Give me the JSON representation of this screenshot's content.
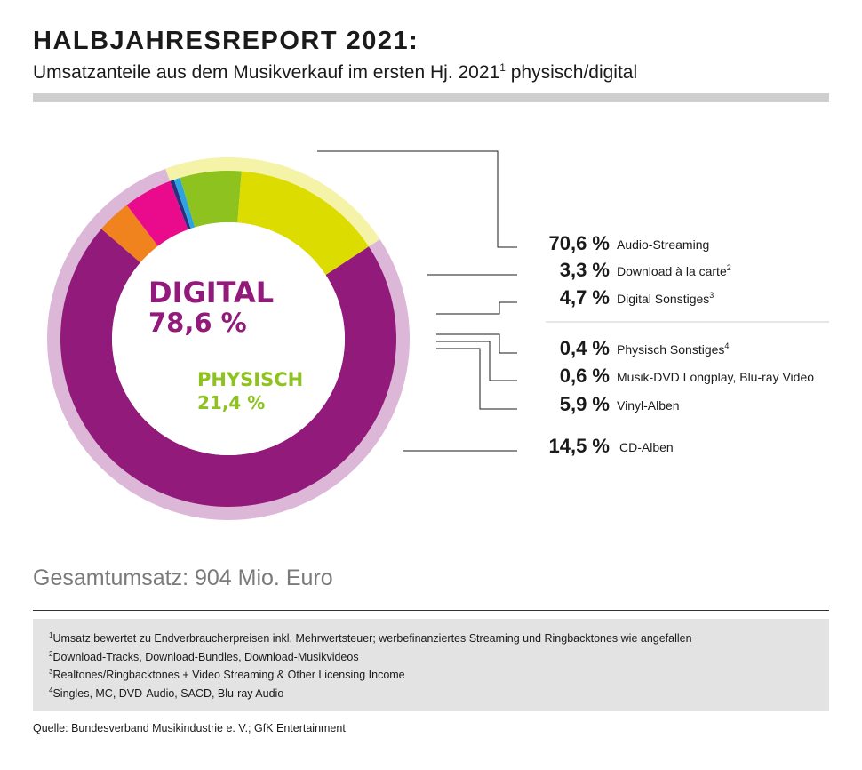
{
  "header": {
    "title": "HALBJAHRESREPORT 2021:",
    "subtitle": "Umsatzanteile aus dem Musikverkauf im ersten Hj. 2021",
    "subtitle_sup": "1",
    "subtitle_tail": " physisch/digital"
  },
  "center": {
    "digital_label": "DIGITAL",
    "digital_value": "78,6 %",
    "physical_label": "PHYSISCH",
    "physical_value": "21,4 %"
  },
  "chart_data": {
    "type": "pie",
    "title": "Umsatzanteile aus dem Musikverkauf im ersten Hj. 2021 physisch/digital",
    "unit": "%",
    "groups": [
      {
        "name": "DIGITAL",
        "value": 78.6,
        "color": "#dcb7d8"
      },
      {
        "name": "PHYSISCH",
        "value": 21.4,
        "color": "#f4f3a8"
      }
    ],
    "slices": [
      {
        "label": "Audio-Streaming",
        "value": 70.6,
        "display": "70,6 %",
        "sup": "",
        "group": "DIGITAL",
        "color": "#921a7a"
      },
      {
        "label": "Download à la carte",
        "value": 3.3,
        "display": "3,3 %",
        "sup": "2",
        "group": "DIGITAL",
        "color": "#f0831e"
      },
      {
        "label": "Digital Sonstiges",
        "value": 4.7,
        "display": "4,7 %",
        "sup": "3",
        "group": "DIGITAL",
        "color": "#ea0a8c"
      },
      {
        "label": "Physisch Sonstiges",
        "value": 0.4,
        "display": "0,4 %",
        "sup": "4",
        "group": "PHYSISCH",
        "color": "#2a2f7f"
      },
      {
        "label": "Musik-DVD Longplay, Blu-ray Video",
        "value": 0.6,
        "display": "0,6 %",
        "sup": "",
        "group": "PHYSISCH",
        "color": "#2ea3e0"
      },
      {
        "label": "Vinyl-Alben",
        "value": 5.9,
        "display": "5,9 %",
        "sup": "",
        "group": "PHYSISCH",
        "color": "#8dc21f"
      },
      {
        "label": "CD-Alben",
        "value": 14.5,
        "display": "14,5 %",
        "sup": "",
        "group": "PHYSISCH",
        "color": "#dcdc00"
      }
    ]
  },
  "total": "Gesamtumsatz: 904 Mio. Euro",
  "footnotes": [
    {
      "num": "1",
      "text": "Umsatz bewertet zu Endverbraucherpreisen inkl. Mehrwertsteuer; werbefinanziertes Streaming und Ringbacktones wie angefallen"
    },
    {
      "num": "2",
      "text": "Download-Tracks, Download-Bundles, Download-Musikvideos"
    },
    {
      "num": "3",
      "text": "Realtones/Ringbacktones + Video Streaming & Other Licensing Income"
    },
    {
      "num": "4",
      "text": "Singles, MC, DVD-Audio, SACD, Blu-ray Audio"
    }
  ],
  "source": "Quelle: Bundesverband Musikindustrie e. V.; GfK Entertainment",
  "colors": {
    "digital_text": "#921a7a",
    "physical_text": "#8dc21f",
    "separator": "#cccccc",
    "leader": "#1a1a1a"
  }
}
